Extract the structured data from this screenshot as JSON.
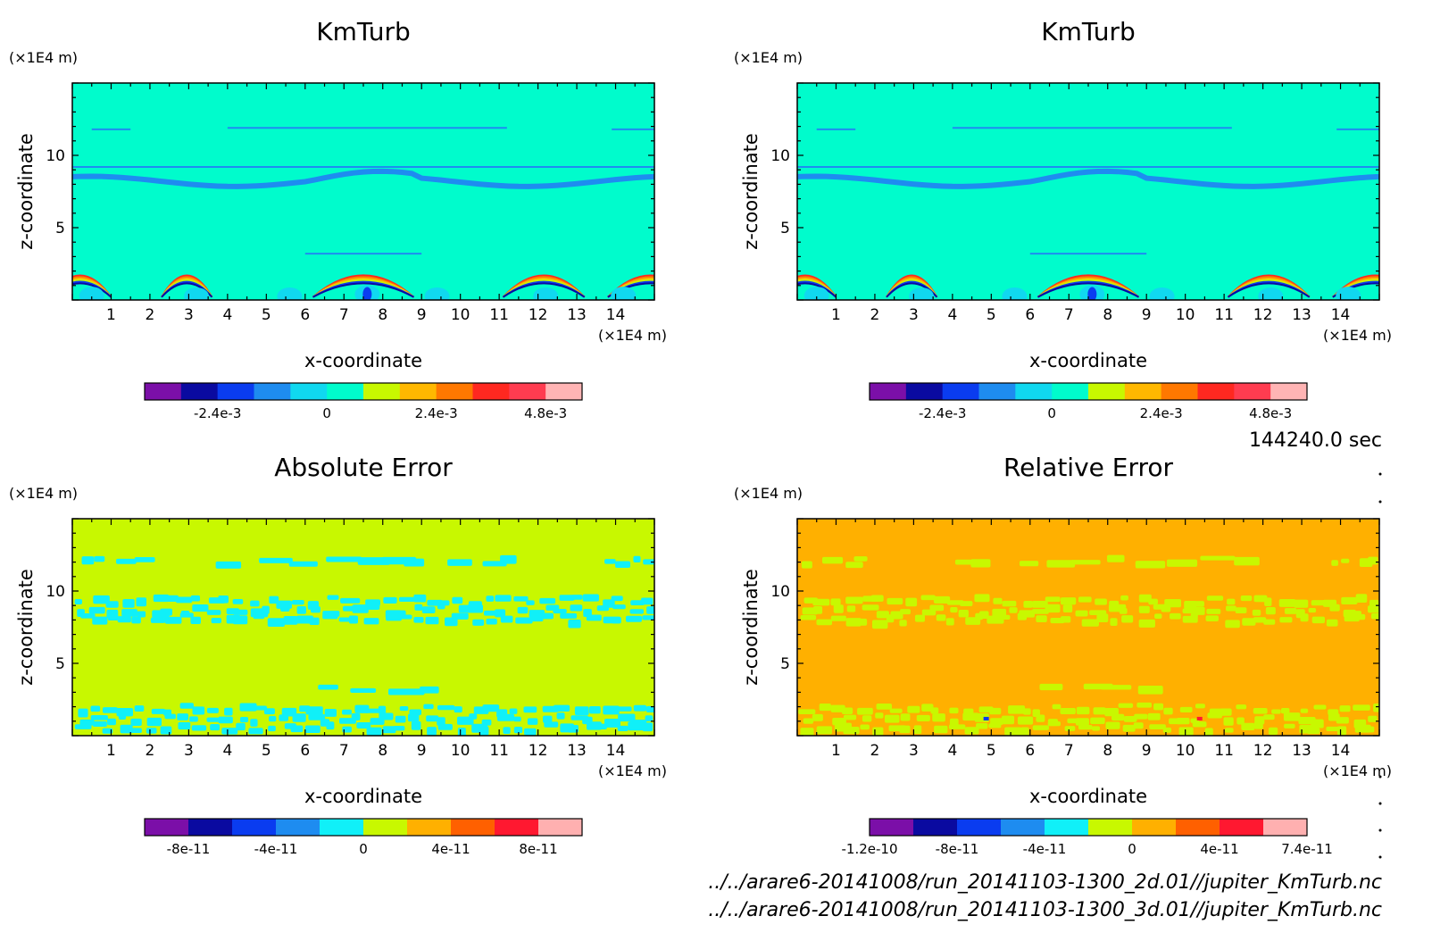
{
  "chart_data": [
    {
      "type": "heatmap",
      "title": "KmTurb",
      "xlabel": "x-coordinate",
      "ylabel": "z-coordinate",
      "x_unit": "(×1E4 m)",
      "y_unit": "(×1E4 m)",
      "xlim": [
        0,
        15
      ],
      "ylim": [
        0,
        15
      ],
      "x_ticks": [
        "1",
        "2",
        "3",
        "4",
        "5",
        "6",
        "7",
        "8",
        "9",
        "10",
        "11",
        "12",
        "13",
        "14"
      ],
      "y_ticks": [
        "5",
        "10"
      ],
      "background_level": "0",
      "colorbar": {
        "colors": [
          "#7b0fa8",
          "#0a0aa0",
          "#0a3cf0",
          "#1e8cf0",
          "#10d8f0",
          "#00fccc",
          "#c8f800",
          "#ffb800",
          "#ff7800",
          "#ff2820",
          "#ff3c50",
          "#ffb4b4"
        ],
        "ticks": [
          "-2.4e-3",
          "0",
          "2.4e-3",
          "4.8e-3"
        ]
      }
    },
    {
      "type": "heatmap",
      "title": "KmTurb",
      "xlabel": "x-coordinate",
      "ylabel": "z-coordinate",
      "x_unit": "(×1E4 m)",
      "y_unit": "(×1E4 m)",
      "xlim": [
        0,
        15
      ],
      "ylim": [
        0,
        15
      ],
      "x_ticks": [
        "1",
        "2",
        "3",
        "4",
        "5",
        "6",
        "7",
        "8",
        "9",
        "10",
        "11",
        "12",
        "13",
        "14"
      ],
      "y_ticks": [
        "5",
        "10"
      ],
      "background_level": "0",
      "colorbar": {
        "colors": [
          "#7b0fa8",
          "#0a0aa0",
          "#0a3cf0",
          "#1e8cf0",
          "#10d8f0",
          "#00fccc",
          "#c8f800",
          "#ffb800",
          "#ff7800",
          "#ff2820",
          "#ff3c50",
          "#ffb4b4"
        ],
        "ticks": [
          "-2.4e-3",
          "0",
          "2.4e-3",
          "4.8e-3"
        ]
      }
    },
    {
      "type": "heatmap",
      "title": "Absolute Error",
      "xlabel": "x-coordinate",
      "ylabel": "z-coordinate",
      "x_unit": "(×1E4 m)",
      "y_unit": "(×1E4 m)",
      "xlim": [
        0,
        15
      ],
      "ylim": [
        0,
        15
      ],
      "x_ticks": [
        "1",
        "2",
        "3",
        "4",
        "5",
        "6",
        "7",
        "8",
        "9",
        "10",
        "11",
        "12",
        "13",
        "14"
      ],
      "y_ticks": [
        "5",
        "10"
      ],
      "background_level": "0",
      "colorbar": {
        "colors": [
          "#7b0fa8",
          "#0a0aa0",
          "#0a3cf0",
          "#1e8cf0",
          "#10f0f8",
          "#c8f800",
          "#ffb000",
          "#ff6000",
          "#ff1830",
          "#ffb0b0"
        ],
        "ticks": [
          "-8e-11",
          "-4e-11",
          "0",
          "4e-11",
          "8e-11"
        ]
      }
    },
    {
      "type": "heatmap",
      "title": "Relative Error",
      "xlabel": "x-coordinate",
      "ylabel": "z-coordinate",
      "x_unit": "(×1E4 m)",
      "y_unit": "(×1E4 m)",
      "xlim": [
        0,
        15
      ],
      "ylim": [
        0,
        15
      ],
      "x_ticks": [
        "1",
        "2",
        "3",
        "4",
        "5",
        "6",
        "7",
        "8",
        "9",
        "10",
        "11",
        "12",
        "13",
        "14"
      ],
      "y_ticks": [
        "5",
        "10"
      ],
      "background_level": "0",
      "colorbar": {
        "colors": [
          "#7b0fa8",
          "#0a0aa0",
          "#0a3cf0",
          "#1e8cf0",
          "#10f0f8",
          "#c8f800",
          "#ffb000",
          "#ff6000",
          "#ff1830",
          "#ffb0b0"
        ],
        "ticks": [
          "-1.2e-10",
          "-8e-11",
          "-4e-11",
          "0",
          "4e-11",
          "7.4e-11"
        ]
      }
    }
  ],
  "time_label": "144240.0 sec",
  "files": [
    "../../arare6-20141008/run_20141103-1300_2d.01//jupiter_KmTurb.nc",
    "../../arare6-20141008/run_20141103-1300_3d.01//jupiter_KmTurb.nc"
  ]
}
